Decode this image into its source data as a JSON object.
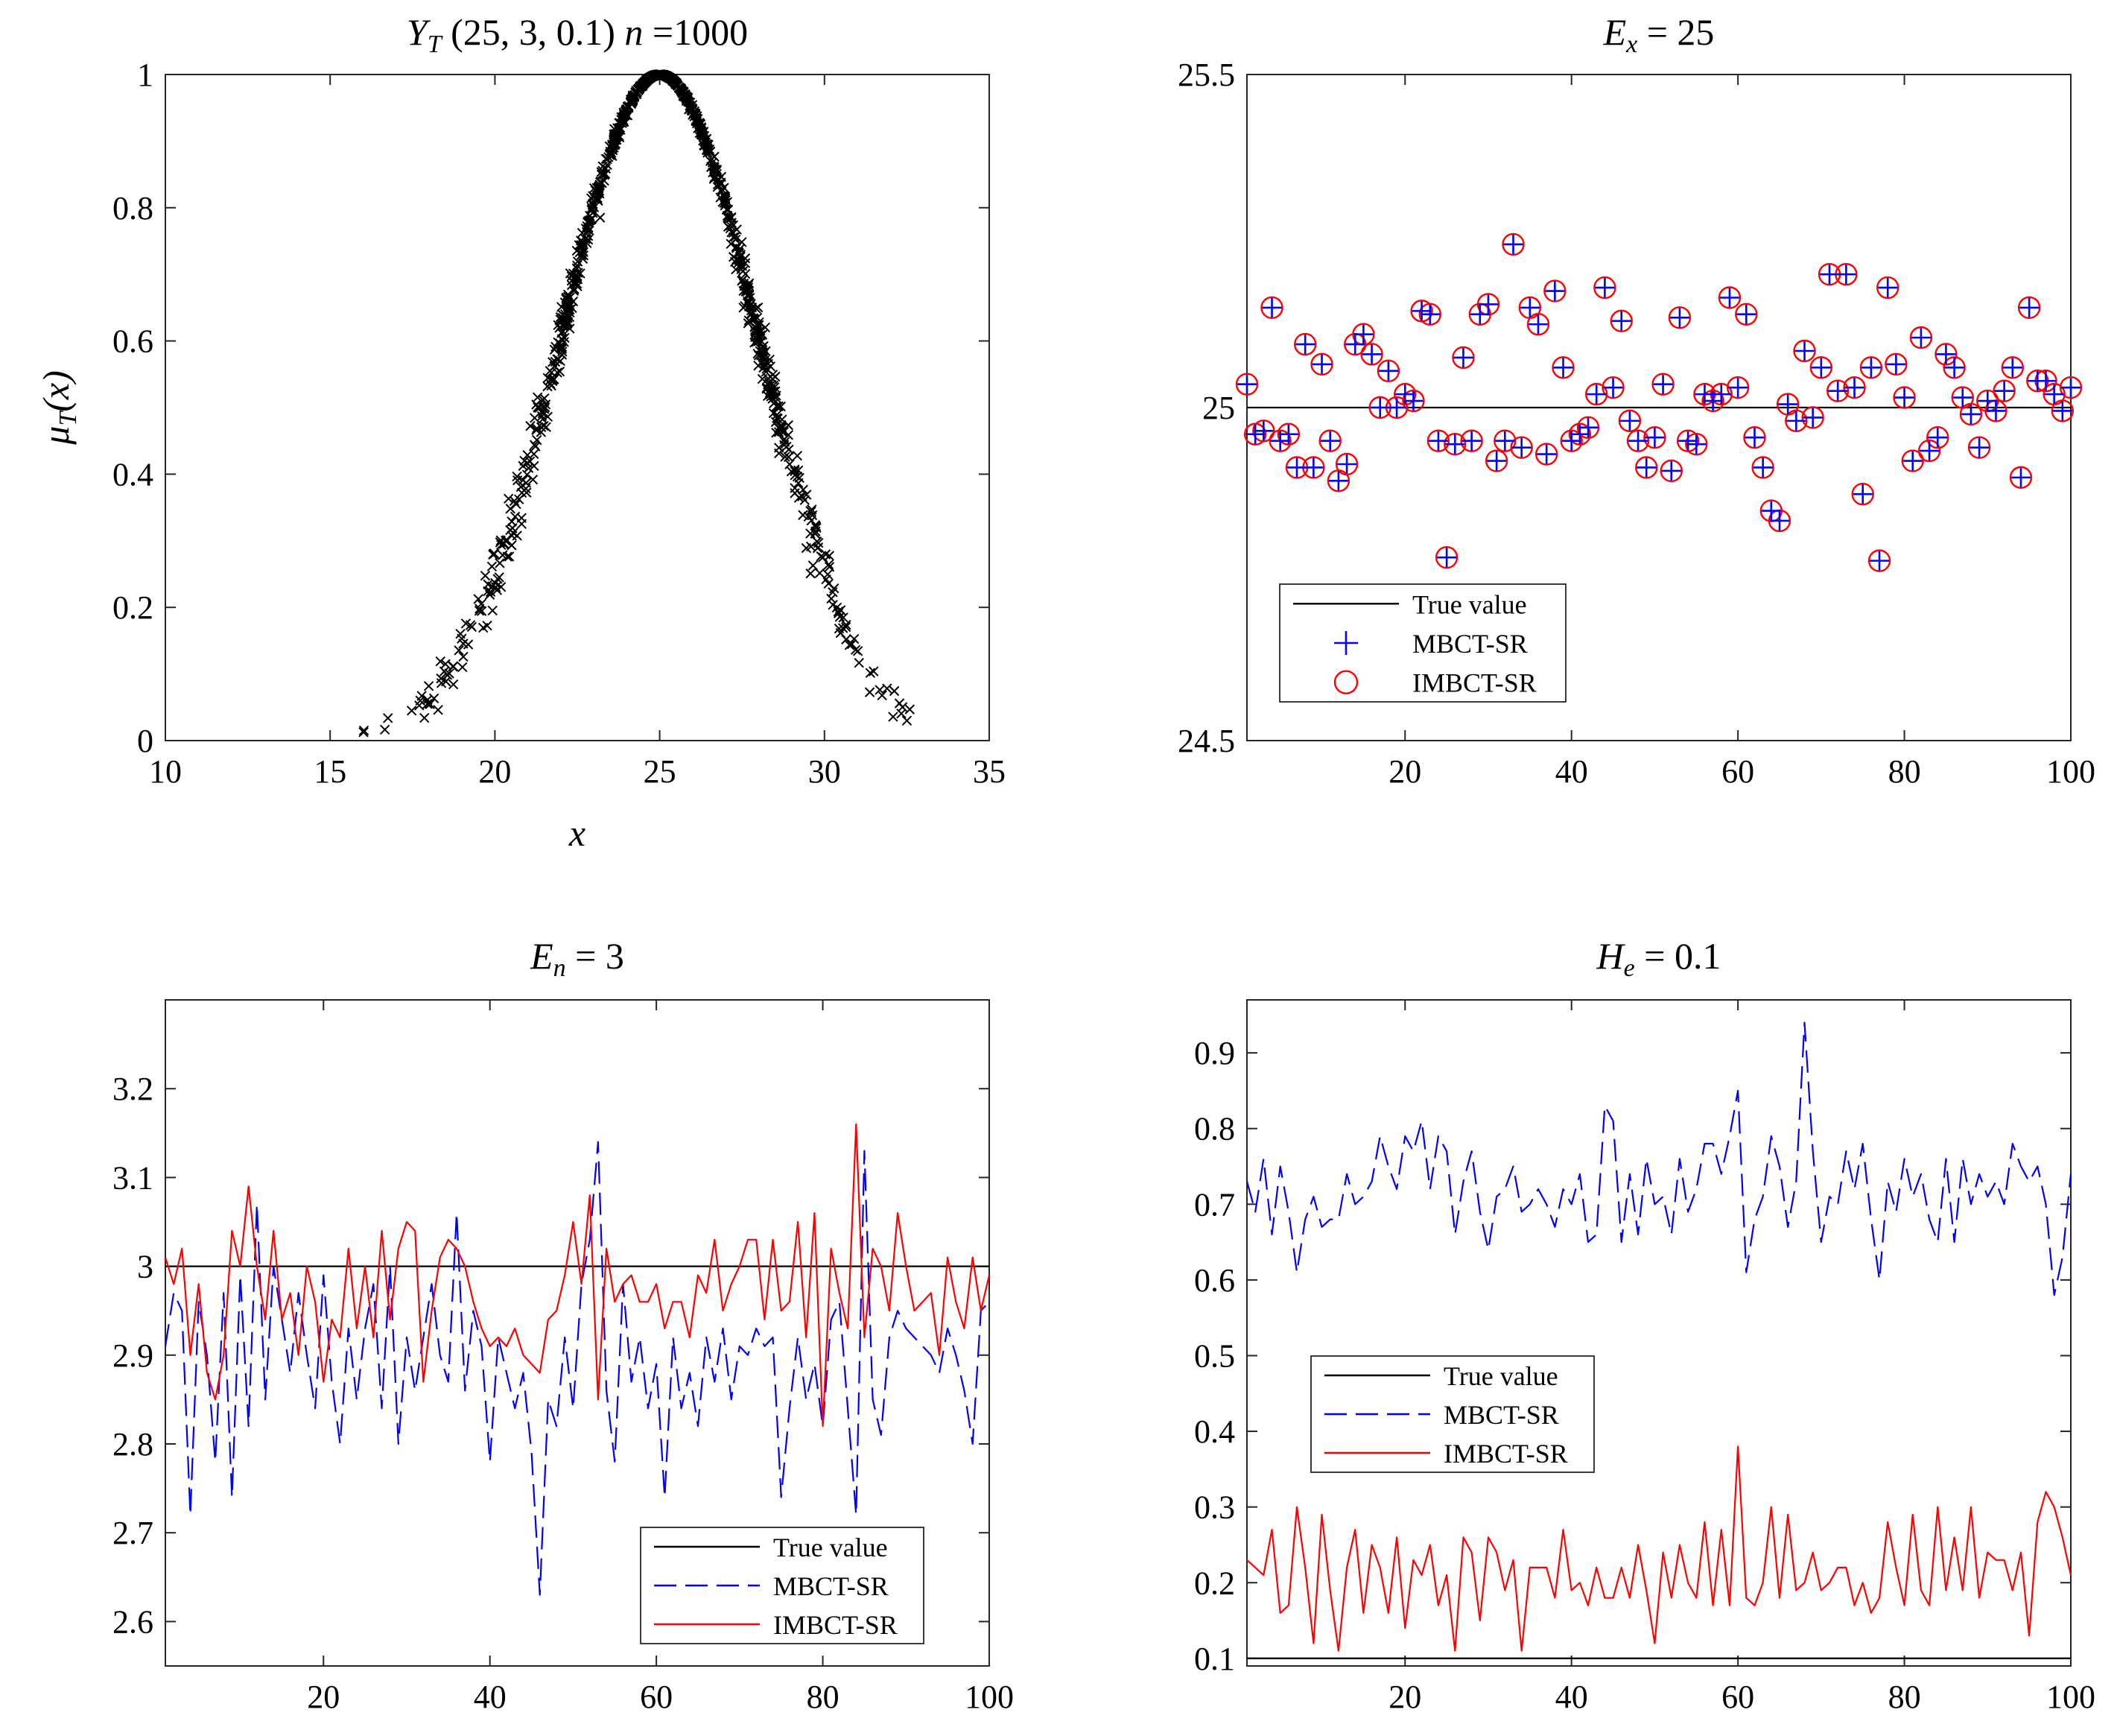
{
  "chart_data": [
    {
      "id": "panel1",
      "type": "scatter",
      "title": "Y_T (25, 3, 0.1)  n =1000",
      "title_parts": {
        "main": "Y",
        "sub": "T",
        "params": "(25, 3, 0.1)",
        "n_label": "n",
        "n_eq": "=1000"
      },
      "xlabel": "x",
      "ylabel": "μ_T(x)",
      "ylabel_parts": {
        "main": "μ",
        "sub": "T",
        "arg": "(x)"
      },
      "xlim": [
        10,
        35
      ],
      "ylim": [
        0,
        1
      ],
      "xticks": [
        "10",
        "15",
        "20",
        "25",
        "30",
        "35"
      ],
      "yticks": [
        "0",
        "0.2",
        "0.4",
        "0.6",
        "0.8",
        "1"
      ],
      "marker": "x",
      "n_points": 1000,
      "generator": {
        "ex": 25,
        "en": 3,
        "he": 0.1
      },
      "x_extent": [
        14.6,
        33.4
      ],
      "color": "#000000"
    },
    {
      "id": "panel2",
      "type": "scatter",
      "title": "E_x = 25",
      "title_parts": {
        "main": "E",
        "sub": "x",
        "eq": "= 25"
      },
      "xlim": [
        1,
        100
      ],
      "ylim": [
        24.5,
        25.5
      ],
      "xticks": [
        "20",
        "40",
        "60",
        "80",
        "100"
      ],
      "yticks": [
        "24.5",
        "25",
        "25.5"
      ],
      "true_value": 25,
      "x": [
        1,
        2,
        3,
        4,
        5,
        6,
        7,
        8,
        9,
        10,
        11,
        12,
        13,
        14,
        15,
        16,
        17,
        18,
        19,
        20,
        21,
        22,
        23,
        24,
        25,
        26,
        27,
        28,
        29,
        30,
        31,
        32,
        33,
        34,
        35,
        36,
        37,
        38,
        39,
        40,
        41,
        42,
        43,
        44,
        45,
        46,
        47,
        48,
        49,
        50,
        51,
        52,
        53,
        54,
        55,
        56,
        57,
        58,
        59,
        60,
        61,
        62,
        63,
        64,
        65,
        66,
        67,
        68,
        69,
        70,
        71,
        72,
        73,
        74,
        75,
        76,
        77,
        78,
        79,
        80,
        81,
        82,
        83,
        84,
        85,
        86,
        87,
        88,
        89,
        90,
        91,
        92,
        93,
        94,
        95,
        96,
        97,
        98,
        99,
        100
      ],
      "series": [
        {
          "name": "MBCT-SR",
          "marker": "+",
          "color": "#0000ff",
          "values": [
            25.035,
            24.96,
            24.965,
            25.15,
            24.95,
            24.96,
            24.91,
            25.095,
            24.91,
            25.065,
            24.95,
            24.89,
            24.915,
            25.095,
            25.11,
            25.08,
            25.0,
            25.055,
            25.0,
            25.02,
            25.01,
            25.145,
            25.14,
            24.95,
            24.775,
            24.945,
            25.075,
            24.95,
            25.14,
            25.155,
            24.92,
            24.95,
            25.245,
            24.94,
            25.15,
            25.125,
            24.93,
            25.175,
            25.06,
            24.95,
            24.96,
            24.97,
            25.02,
            25.18,
            25.03,
            25.13,
            24.98,
            24.95,
            24.91,
            24.955,
            25.035,
            24.905,
            25.135,
            24.95,
            24.945,
            25.02,
            25.01,
            25.02,
            25.165,
            25.03,
            25.14,
            24.955,
            24.91,
            24.845,
            24.83,
            25.005,
            24.98,
            25.085,
            24.985,
            25.06,
            25.2,
            25.025,
            25.2,
            25.03,
            24.87,
            25.06,
            24.77,
            25.18,
            25.065,
            25.015,
            24.92,
            25.105,
            24.935,
            24.955,
            25.08,
            25.06,
            25.015,
            24.99,
            24.94,
            25.01,
            24.995,
            25.025,
            25.06,
            24.895,
            25.15,
            25.04,
            25.04,
            25.02,
            24.995,
            25.03
          ]
        },
        {
          "name": "IMBCT-SR",
          "marker": "o",
          "color": "#ff0000",
          "values": [
            25.035,
            24.96,
            24.965,
            25.15,
            24.95,
            24.96,
            24.91,
            25.095,
            24.91,
            25.065,
            24.95,
            24.89,
            24.915,
            25.095,
            25.11,
            25.08,
            25.0,
            25.055,
            25.0,
            25.02,
            25.01,
            25.145,
            25.14,
            24.95,
            24.775,
            24.945,
            25.075,
            24.95,
            25.14,
            25.155,
            24.92,
            24.95,
            25.245,
            24.94,
            25.15,
            25.125,
            24.93,
            25.175,
            25.06,
            24.95,
            24.96,
            24.97,
            25.02,
            25.18,
            25.03,
            25.13,
            24.98,
            24.95,
            24.91,
            24.955,
            25.035,
            24.905,
            25.135,
            24.95,
            24.945,
            25.02,
            25.01,
            25.02,
            25.165,
            25.03,
            25.14,
            24.955,
            24.91,
            24.845,
            24.83,
            25.005,
            24.98,
            25.085,
            24.985,
            25.06,
            25.2,
            25.025,
            25.2,
            25.03,
            24.87,
            25.06,
            24.77,
            25.18,
            25.065,
            25.015,
            24.92,
            25.105,
            24.935,
            24.955,
            25.08,
            25.06,
            25.015,
            24.99,
            24.94,
            25.01,
            24.995,
            25.025,
            25.06,
            24.895,
            25.15,
            25.04,
            25.04,
            25.02,
            24.995,
            25.03
          ]
        }
      ],
      "legend": {
        "placement": "bottom-left",
        "entries": [
          "True value",
          "MBCT-SR",
          "IMBCT-SR"
        ]
      }
    },
    {
      "id": "panel3",
      "type": "line",
      "title": "E_n = 3",
      "title_parts": {
        "main": "E",
        "sub": "n",
        "eq": "= 3"
      },
      "xlim": [
        1,
        100
      ],
      "ylim": [
        2.55,
        3.3
      ],
      "xticks": [
        "20",
        "40",
        "60",
        "80",
        "100"
      ],
      "yticks": [
        "2.6",
        "2.7",
        "2.8",
        "2.9",
        "3",
        "3.1",
        "3.2"
      ],
      "true_value": 3,
      "series": [
        {
          "name": "MBCT-SR",
          "style": "dashed",
          "color": "#0000ff",
          "values": [
            2.91,
            2.97,
            2.95,
            2.72,
            2.96,
            2.9,
            2.78,
            2.97,
            2.74,
            2.99,
            2.82,
            3.07,
            2.85,
            3.0,
            2.94,
            2.88,
            2.97,
            2.9,
            2.84,
            2.99,
            2.87,
            2.8,
            2.93,
            2.85,
            2.93,
            2.98,
            2.84,
            3.0,
            2.8,
            2.92,
            2.86,
            2.92,
            2.98,
            2.9,
            2.87,
            3.06,
            2.86,
            2.95,
            2.91,
            2.78,
            2.92,
            2.88,
            2.84,
            2.88,
            2.79,
            2.63,
            2.85,
            2.82,
            2.92,
            2.84,
            2.98,
            3.03,
            3.14,
            2.86,
            2.78,
            2.98,
            2.87,
            2.92,
            2.84,
            2.89,
            2.74,
            2.92,
            2.84,
            2.88,
            2.82,
            2.92,
            2.87,
            2.93,
            2.85,
            2.91,
            2.9,
            2.93,
            2.91,
            2.92,
            2.74,
            2.84,
            2.92,
            2.85,
            2.89,
            2.82,
            2.94,
            2.96,
            2.84,
            2.72,
            3.13,
            2.85,
            2.81,
            2.92,
            2.95,
            2.93,
            2.92,
            2.91,
            2.9,
            2.88,
            2.93,
            2.9,
            2.86,
            2.8,
            2.95,
            2.96
          ]
        },
        {
          "name": "IMBCT-SR",
          "style": "solid",
          "color": "#ff0000",
          "values": [
            3.01,
            2.98,
            3.02,
            2.9,
            2.98,
            2.88,
            2.85,
            2.9,
            3.04,
            3.0,
            3.09,
            3.0,
            2.94,
            3.04,
            2.94,
            2.97,
            2.9,
            3.0,
            2.96,
            2.87,
            2.94,
            2.92,
            3.02,
            2.93,
            3.0,
            2.92,
            3.04,
            2.94,
            3.02,
            3.05,
            3.04,
            2.87,
            2.95,
            3.01,
            3.03,
            3.02,
            3.0,
            2.96,
            2.93,
            2.91,
            2.92,
            2.91,
            2.93,
            2.9,
            2.89,
            2.88,
            2.94,
            2.95,
            2.99,
            3.05,
            2.98,
            3.08,
            2.85,
            3.02,
            2.96,
            2.98,
            2.99,
            2.96,
            2.96,
            2.98,
            2.93,
            2.96,
            2.96,
            2.92,
            2.99,
            2.97,
            3.03,
            2.95,
            2.98,
            3.0,
            3.03,
            3.03,
            2.94,
            3.03,
            2.95,
            2.96,
            3.05,
            2.92,
            3.06,
            2.82,
            3.02,
            2.97,
            2.93,
            3.16,
            2.92,
            3.02,
            3.0,
            2.95,
            3.06,
            3.0,
            2.95,
            2.96,
            2.97,
            2.9,
            3.01,
            2.96,
            2.93,
            3.01,
            2.95,
            2.99
          ]
        }
      ],
      "legend": {
        "placement": "bottom-right",
        "entries": [
          "True value",
          "MBCT-SR",
          "IMBCT-SR"
        ]
      }
    },
    {
      "id": "panel4",
      "type": "line",
      "title": "H_e = 0.1",
      "title_parts": {
        "main": "H",
        "sub": "e",
        "eq": "= 0.1"
      },
      "xlim": [
        1,
        100
      ],
      "ylim": [
        0.09,
        0.97
      ],
      "xticks": [
        "20",
        "40",
        "60",
        "80",
        "100"
      ],
      "yticks": [
        "0.1",
        "0.2",
        "0.3",
        "0.4",
        "0.5",
        "0.6",
        "0.7",
        "0.8",
        "0.9"
      ],
      "true_value": 0.1,
      "series": [
        {
          "name": "MBCT-SR",
          "style": "dashed",
          "color": "#0000ff",
          "values": [
            0.73,
            0.69,
            0.76,
            0.66,
            0.75,
            0.69,
            0.61,
            0.68,
            0.71,
            0.67,
            0.68,
            0.68,
            0.74,
            0.7,
            0.71,
            0.73,
            0.79,
            0.75,
            0.72,
            0.79,
            0.77,
            0.81,
            0.72,
            0.79,
            0.77,
            0.66,
            0.73,
            0.77,
            0.69,
            0.64,
            0.71,
            0.72,
            0.75,
            0.69,
            0.7,
            0.72,
            0.7,
            0.67,
            0.72,
            0.7,
            0.74,
            0.65,
            0.66,
            0.83,
            0.81,
            0.65,
            0.74,
            0.66,
            0.76,
            0.7,
            0.71,
            0.66,
            0.76,
            0.69,
            0.72,
            0.78,
            0.78,
            0.74,
            0.79,
            0.85,
            0.61,
            0.68,
            0.71,
            0.79,
            0.75,
            0.67,
            0.73,
            0.94,
            0.77,
            0.65,
            0.71,
            0.7,
            0.77,
            0.72,
            0.78,
            0.68,
            0.6,
            0.73,
            0.69,
            0.76,
            0.71,
            0.74,
            0.68,
            0.65,
            0.76,
            0.65,
            0.76,
            0.7,
            0.74,
            0.71,
            0.73,
            0.7,
            0.78,
            0.75,
            0.73,
            0.75,
            0.7,
            0.58,
            0.63,
            0.74
          ]
        },
        {
          "name": "IMBCT-SR",
          "style": "solid",
          "color": "#ff0000",
          "values": [
            0.23,
            0.22,
            0.21,
            0.27,
            0.16,
            0.17,
            0.3,
            0.22,
            0.12,
            0.29,
            0.19,
            0.11,
            0.22,
            0.27,
            0.16,
            0.25,
            0.22,
            0.16,
            0.26,
            0.14,
            0.23,
            0.21,
            0.25,
            0.17,
            0.21,
            0.11,
            0.26,
            0.24,
            0.15,
            0.26,
            0.24,
            0.19,
            0.23,
            0.11,
            0.22,
            0.22,
            0.22,
            0.18,
            0.27,
            0.19,
            0.2,
            0.17,
            0.22,
            0.18,
            0.18,
            0.22,
            0.18,
            0.25,
            0.19,
            0.12,
            0.24,
            0.18,
            0.25,
            0.2,
            0.18,
            0.28,
            0.17,
            0.27,
            0.17,
            0.38,
            0.18,
            0.17,
            0.2,
            0.3,
            0.18,
            0.29,
            0.19,
            0.2,
            0.24,
            0.19,
            0.2,
            0.22,
            0.22,
            0.17,
            0.2,
            0.16,
            0.18,
            0.28,
            0.22,
            0.17,
            0.29,
            0.19,
            0.17,
            0.3,
            0.19,
            0.26,
            0.19,
            0.3,
            0.18,
            0.24,
            0.23,
            0.23,
            0.19,
            0.24,
            0.13,
            0.28,
            0.32,
            0.3,
            0.26,
            0.21
          ]
        }
      ],
      "legend": {
        "placement": "middle-left",
        "entries": [
          "True value",
          "MBCT-SR",
          "IMBCT-SR"
        ]
      }
    }
  ]
}
